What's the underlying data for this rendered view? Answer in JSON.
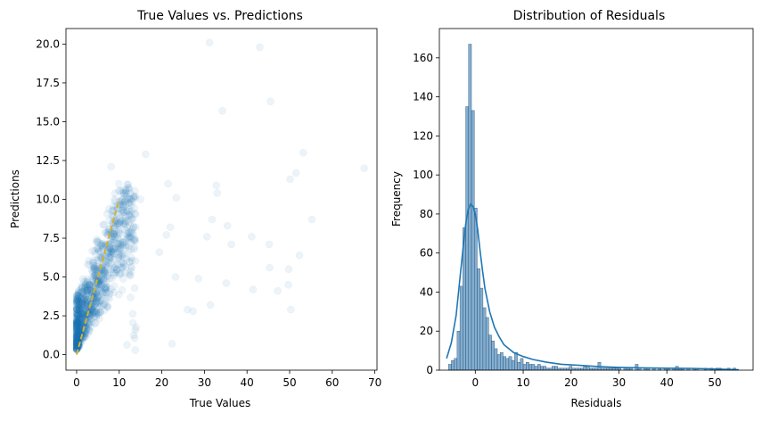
{
  "chart_data": [
    {
      "type": "scatter",
      "title": "True Values vs. Predictions",
      "xlabel": "True Values",
      "ylabel": "Predictions",
      "xlim": [
        -2.5,
        70.5
      ],
      "ylim": [
        -1.0,
        21.0
      ],
      "xticks": [
        0,
        10,
        20,
        30,
        40,
        50,
        60,
        70
      ],
      "yticks": [
        0.0,
        2.5,
        5.0,
        7.5,
        10.0,
        12.5,
        15.0,
        17.5,
        20.0
      ],
      "ytick_labels": [
        "0.0",
        "2.5",
        "5.0",
        "7.5",
        "10.0",
        "12.5",
        "15.0",
        "17.5",
        "20.0"
      ],
      "point_color": "#1f77b4",
      "point_alpha": 0.08,
      "reference_line": {
        "x": [
          0,
          10
        ],
        "y": [
          0,
          10
        ],
        "color": "#d4b12a",
        "style": "dashed"
      },
      "outliers": [
        {
          "x": 31.2,
          "y": 20.1
        },
        {
          "x": 43.0,
          "y": 19.8
        },
        {
          "x": 45.5,
          "y": 16.3
        },
        {
          "x": 34.2,
          "y": 15.7
        },
        {
          "x": 16.2,
          "y": 12.9
        },
        {
          "x": 8.1,
          "y": 12.1
        },
        {
          "x": 53.2,
          "y": 13.0
        },
        {
          "x": 51.5,
          "y": 11.7
        },
        {
          "x": 50.1,
          "y": 11.3
        },
        {
          "x": 67.5,
          "y": 12.0
        },
        {
          "x": 21.5,
          "y": 11.0
        },
        {
          "x": 32.8,
          "y": 10.9
        },
        {
          "x": 33.0,
          "y": 10.4
        },
        {
          "x": 23.4,
          "y": 10.1
        },
        {
          "x": 15.0,
          "y": 10.0
        },
        {
          "x": 31.8,
          "y": 8.7
        },
        {
          "x": 35.4,
          "y": 8.3
        },
        {
          "x": 22.0,
          "y": 8.2
        },
        {
          "x": 55.2,
          "y": 8.7
        },
        {
          "x": 30.6,
          "y": 7.6
        },
        {
          "x": 36.3,
          "y": 7.1
        },
        {
          "x": 41.1,
          "y": 7.6
        },
        {
          "x": 45.2,
          "y": 7.1
        },
        {
          "x": 52.3,
          "y": 6.4
        },
        {
          "x": 45.3,
          "y": 5.6
        },
        {
          "x": 49.8,
          "y": 5.5
        },
        {
          "x": 35.1,
          "y": 4.6
        },
        {
          "x": 41.4,
          "y": 4.2
        },
        {
          "x": 47.2,
          "y": 4.1
        },
        {
          "x": 49.7,
          "y": 4.5
        },
        {
          "x": 50.3,
          "y": 2.9
        },
        {
          "x": 31.4,
          "y": 3.2
        },
        {
          "x": 27.3,
          "y": 2.8
        },
        {
          "x": 22.4,
          "y": 0.7
        },
        {
          "x": 26.0,
          "y": 2.9
        },
        {
          "x": 23.2,
          "y": 5.0
        },
        {
          "x": 19.4,
          "y": 6.6
        },
        {
          "x": 21.1,
          "y": 7.7
        },
        {
          "x": 28.6,
          "y": 4.9
        }
      ]
    },
    {
      "type": "bar",
      "title": "Distribution of Residuals",
      "xlabel": "Residuals",
      "ylabel": "Frequency",
      "xlim": [
        -7.5,
        58.0
      ],
      "ylim": [
        0,
        175
      ],
      "xticks": [
        0,
        10,
        20,
        30,
        40,
        50
      ],
      "yticks": [
        0,
        20,
        40,
        60,
        80,
        100,
        120,
        140,
        160
      ],
      "bar_color": "#5a93c2",
      "kde_color": "#1f77b4",
      "bin_start": -5.6,
      "bin_width": 0.6,
      "values": [
        3,
        5,
        6,
        20,
        43,
        73,
        135,
        167,
        133,
        83,
        52,
        42,
        32,
        27,
        18,
        15,
        11,
        8,
        9,
        7,
        6,
        7,
        5,
        9,
        4,
        6,
        3,
        4,
        3,
        3,
        2,
        3,
        2,
        2,
        1,
        1,
        2,
        2,
        1,
        1,
        1,
        1,
        2,
        1,
        1,
        1,
        1,
        2,
        2,
        1,
        1,
        1,
        4,
        1,
        1,
        1,
        1,
        1,
        1,
        1,
        0,
        1,
        1,
        1,
        0,
        3,
        1,
        0,
        1,
        1,
        0,
        1,
        0,
        1,
        0,
        1,
        1,
        0,
        1,
        2,
        1,
        1,
        0,
        1,
        0,
        1,
        1,
        0,
        0,
        1,
        0,
        1,
        0,
        1,
        1,
        0,
        0,
        1,
        0,
        1
      ],
      "kde": {
        "x": [
          -6,
          -5,
          -4,
          -3,
          -2.5,
          -2,
          -1.5,
          -1,
          -0.5,
          0,
          0.5,
          1,
          1.5,
          2,
          3,
          4,
          5,
          6,
          7,
          8,
          10,
          12,
          15,
          18,
          22,
          26,
          30,
          35,
          40,
          45,
          50,
          55
        ],
        "y": [
          6,
          14,
          28,
          52,
          64,
          75,
          82,
          85,
          84,
          80,
          72,
          61,
          51,
          42,
          30,
          22,
          17,
          13,
          11,
          9,
          7,
          5.5,
          4,
          3,
          2.4,
          1.8,
          1.4,
          1.2,
          1.0,
          0.9,
          0.6,
          0.2
        ]
      }
    }
  ]
}
